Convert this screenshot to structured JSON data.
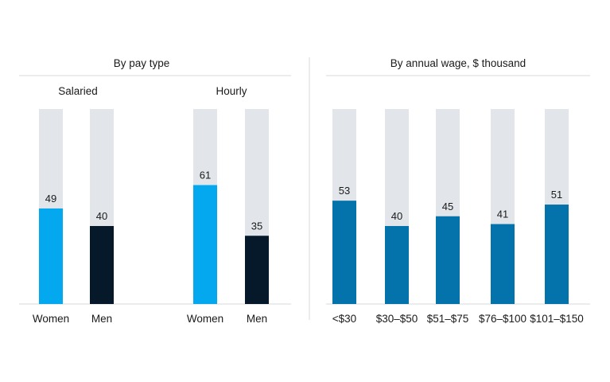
{
  "colors": {
    "track": "#e2e6ea",
    "women": "#04a8ef",
    "men": "#06192b",
    "wage": "#0573ab",
    "divider": "#d5d9dd"
  },
  "chart_data": [
    {
      "type": "bar",
      "title": "By pay type",
      "ylim": [
        0,
        100
      ],
      "groups": [
        {
          "label": "Salaried",
          "categories": [
            "Women",
            "Men"
          ],
          "values": [
            49,
            40
          ]
        },
        {
          "label": "Hourly",
          "categories": [
            "Women",
            "Men"
          ],
          "values": [
            61,
            35
          ]
        }
      ]
    },
    {
      "type": "bar",
      "title": "By annual wage, $ thousand",
      "ylim": [
        0,
        100
      ],
      "categories": [
        "<$30",
        "$30–$50",
        "$51–$75",
        "$76–$100",
        "$101–$150"
      ],
      "values": [
        53,
        40,
        45,
        41,
        51
      ]
    }
  ]
}
